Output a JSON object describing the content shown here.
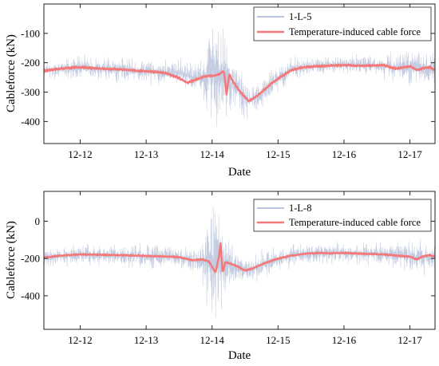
{
  "chart_data": [
    {
      "type": "line",
      "xlabel": "Date",
      "ylabel": "Cableforce (kN)",
      "xlim": [
        11.45,
        17.38
      ],
      "ylim": [
        -475,
        0
      ],
      "x_ticks": [
        12,
        13,
        14,
        15,
        16,
        17
      ],
      "x_tick_labels": [
        "12-12",
        "12-13",
        "12-14",
        "12-15",
        "12-16",
        "12-17"
      ],
      "y_ticks": [
        -100,
        -200,
        -300,
        -400
      ],
      "y_tick_labels": [
        "-100",
        "-200",
        "-300",
        "-400"
      ],
      "legend_position": "top-right",
      "series": [
        {
          "name": "1-L-5",
          "color": "#bcc6de",
          "style": "noisy",
          "x": [
            11.45,
            12.0,
            12.5,
            13.0,
            13.5,
            13.8,
            13.95,
            14.0,
            14.1,
            14.2,
            14.35,
            14.55,
            14.75,
            14.9,
            15.2,
            15.6,
            16.0,
            16.5,
            16.7,
            17.0,
            17.38
          ],
          "center": [
            -225,
            -215,
            -220,
            -230,
            -235,
            -255,
            -240,
            -235,
            -240,
            -250,
            -285,
            -330,
            -310,
            -270,
            -220,
            -210,
            -205,
            -210,
            -215,
            -215,
            -225
          ],
          "amplitude": [
            35,
            40,
            40,
            45,
            45,
            60,
            150,
            200,
            190,
            150,
            90,
            60,
            60,
            55,
            40,
            35,
            35,
            35,
            50,
            60,
            55
          ]
        },
        {
          "name": "Temperature-induced cable force",
          "color": "#f57777",
          "style": "smooth",
          "x": [
            11.45,
            11.7,
            12.0,
            12.3,
            12.6,
            12.9,
            13.1,
            13.3,
            13.5,
            13.62,
            13.75,
            13.9,
            14.0,
            14.1,
            14.18,
            14.22,
            14.26,
            14.3,
            14.4,
            14.5,
            14.55,
            14.62,
            14.7,
            14.8,
            14.9,
            15.0,
            15.1,
            15.2,
            15.4,
            15.6,
            15.8,
            16.0,
            16.2,
            16.4,
            16.6,
            16.7,
            16.8,
            17.0,
            17.1,
            17.2,
            17.3,
            17.38
          ],
          "y": [
            -228,
            -220,
            -215,
            -220,
            -222,
            -228,
            -230,
            -235,
            -252,
            -268,
            -258,
            -245,
            -245,
            -240,
            -228,
            -310,
            -238,
            -258,
            -292,
            -318,
            -330,
            -322,
            -310,
            -290,
            -270,
            -255,
            -240,
            -225,
            -215,
            -212,
            -210,
            -208,
            -210,
            -210,
            -208,
            -215,
            -220,
            -212,
            -225,
            -218,
            -215,
            -225
          ]
        }
      ]
    },
    {
      "type": "line",
      "xlabel": "Date",
      "ylabel": "Cableforce (kN)",
      "xlim": [
        11.45,
        17.38
      ],
      "ylim": [
        -580,
        160
      ],
      "x_ticks": [
        12,
        13,
        14,
        15,
        16,
        17
      ],
      "x_tick_labels": [
        "12-12",
        "12-13",
        "12-14",
        "12-15",
        "12-16",
        "12-17"
      ],
      "y_ticks": [
        0,
        -200,
        -400
      ],
      "y_tick_labels": [
        "0",
        "-200",
        "-400"
      ],
      "legend_position": "top-right",
      "series": [
        {
          "name": "1-L-8",
          "color": "#bcc6de",
          "style": "noisy",
          "x": [
            11.45,
            12.0,
            12.5,
            13.0,
            13.5,
            13.8,
            13.95,
            14.0,
            14.1,
            14.2,
            14.35,
            14.55,
            14.75,
            14.9,
            15.2,
            15.6,
            16.0,
            16.5,
            16.8,
            17.0,
            17.38
          ],
          "center": [
            -195,
            -180,
            -185,
            -190,
            -195,
            -215,
            -215,
            -215,
            -225,
            -235,
            -250,
            -265,
            -240,
            -220,
            -180,
            -170,
            -170,
            -175,
            -180,
            -190,
            -195
          ],
          "amplitude": [
            55,
            60,
            60,
            65,
            65,
            80,
            250,
            350,
            320,
            200,
            110,
            80,
            80,
            75,
            65,
            60,
            60,
            60,
            80,
            110,
            90
          ]
        },
        {
          "name": "Temperature-induced cable force",
          "color": "#f57777",
          "style": "smooth",
          "x": [
            11.45,
            11.7,
            12.0,
            12.3,
            12.6,
            12.9,
            13.2,
            13.5,
            13.7,
            13.85,
            13.95,
            14.05,
            14.1,
            14.13,
            14.16,
            14.2,
            14.3,
            14.4,
            14.5,
            14.6,
            14.8,
            15.0,
            15.2,
            15.4,
            15.6,
            15.8,
            16.0,
            16.3,
            16.6,
            16.8,
            17.0,
            17.1,
            17.2,
            17.3,
            17.38
          ],
          "y": [
            -195,
            -185,
            -178,
            -180,
            -182,
            -185,
            -188,
            -192,
            -210,
            -205,
            -215,
            -275,
            -200,
            -115,
            -280,
            -220,
            -230,
            -245,
            -265,
            -255,
            -225,
            -200,
            -185,
            -175,
            -170,
            -172,
            -170,
            -175,
            -178,
            -185,
            -190,
            -205,
            -188,
            -182,
            -190
          ]
        }
      ]
    }
  ]
}
